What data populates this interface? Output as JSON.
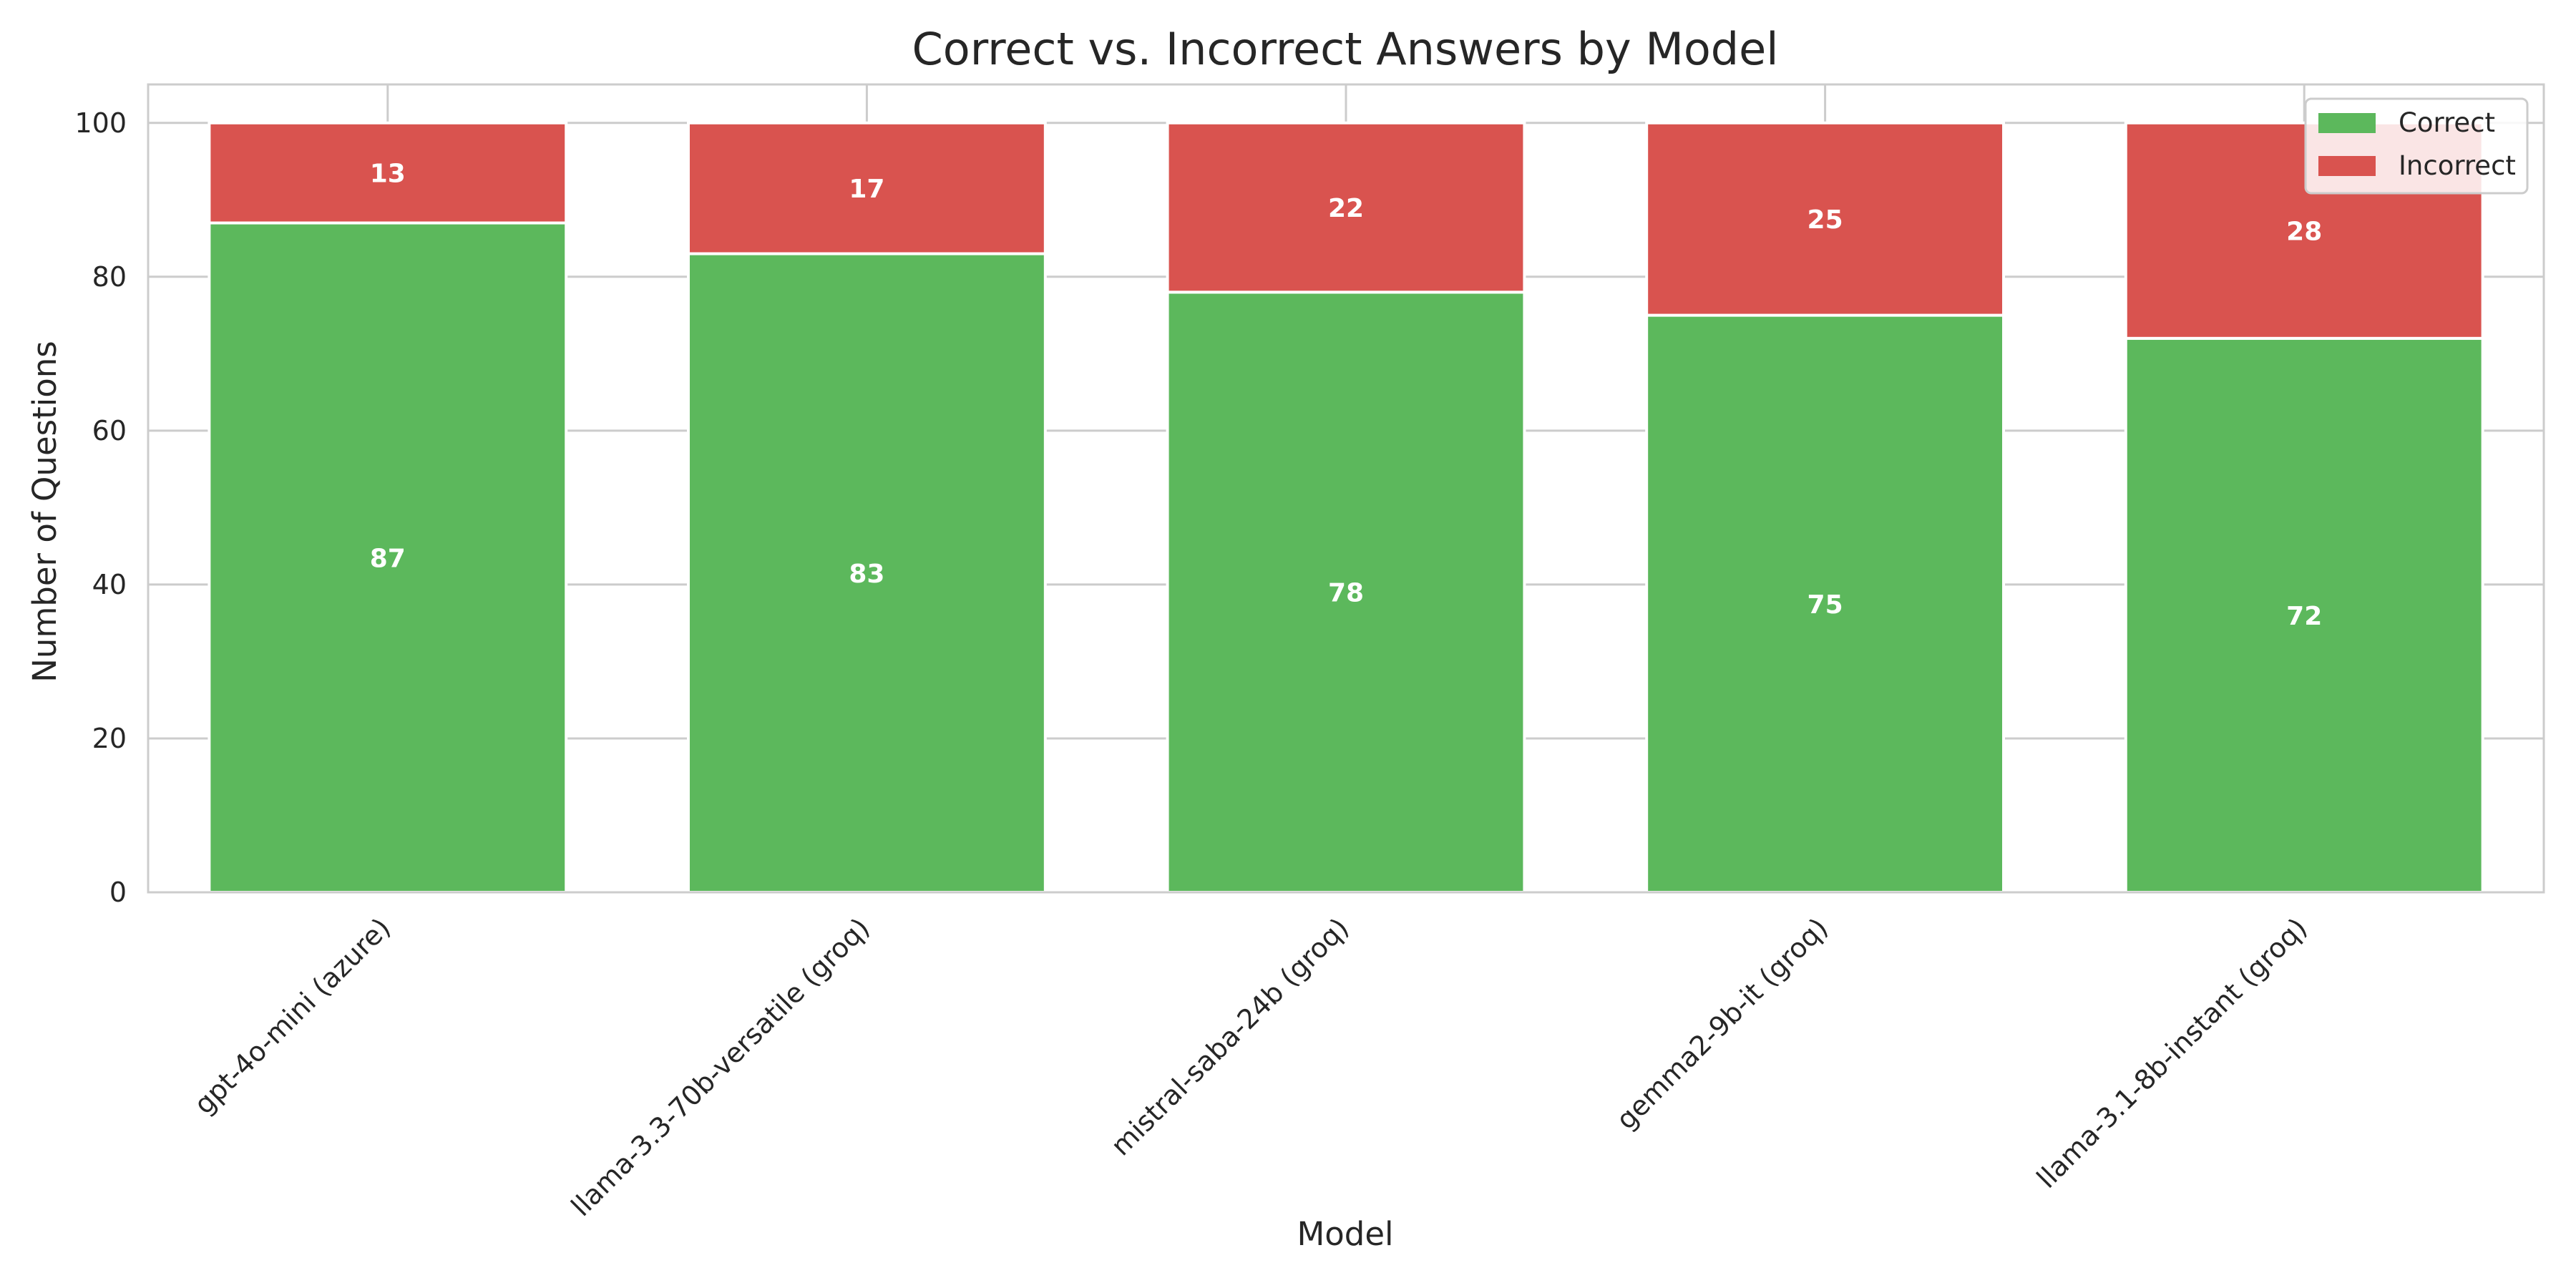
{
  "chart_data": {
    "type": "bar",
    "stacked": true,
    "title": "Correct vs. Incorrect Answers by Model",
    "xlabel": "Model",
    "ylabel": "Number of Questions",
    "categories": [
      "gpt-4o-mini (azure)",
      "llama-3.3-70b-versatile (groq)",
      "mistral-saba-24b (groq)",
      "gemma2-9b-it (groq)",
      "llama-3.1-8b-instant (groq)"
    ],
    "series": [
      {
        "name": "Correct",
        "color": "#5cb85c",
        "values": [
          87,
          83,
          78,
          75,
          72
        ]
      },
      {
        "name": "Incorrect",
        "color": "#d9534f",
        "values": [
          13,
          17,
          22,
          25,
          28
        ]
      }
    ],
    "ylim": [
      0,
      105
    ],
    "yticks": [
      0,
      20,
      40,
      60,
      80,
      100
    ],
    "grid": true,
    "legend_position": "top-right"
  }
}
